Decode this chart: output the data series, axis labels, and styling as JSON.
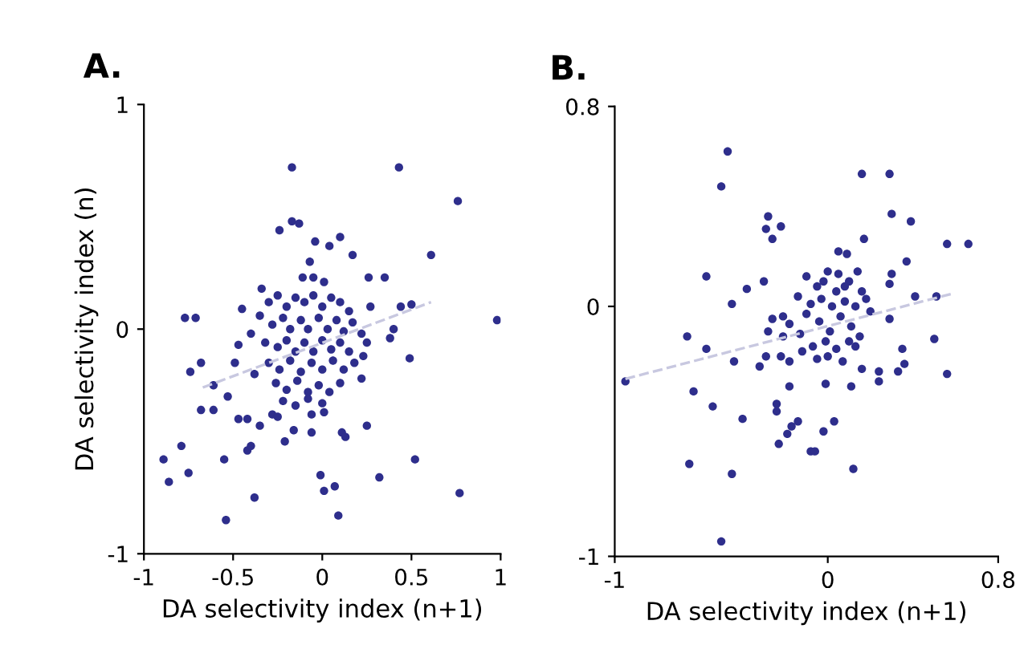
{
  "chart_data": [
    {
      "type": "scatter",
      "title": "A.",
      "xlabel": "DA selectivity index (n+1)",
      "ylabel": "DA selectivity index (n)",
      "xlim": [
        -1,
        1
      ],
      "ylim": [
        -1,
        1
      ],
      "xticks": [
        -1,
        -0.5,
        0,
        0.5,
        1
      ],
      "yticks": [
        -1,
        0,
        1
      ],
      "grid": false,
      "series": [
        {
          "marker": "circle",
          "color": "#2e2e8c",
          "x": [
            -0.17,
            0.43,
            0.76,
            0.61,
            0.98,
            -0.17,
            -0.13,
            -0.24,
            -0.04,
            0.1,
            0.04,
            0.17,
            -0.07,
            -0.11,
            -0.05,
            0.01,
            0.26,
            0.35,
            -0.34,
            -0.45,
            0.44,
            0.5,
            -0.77,
            -0.71,
            0.27,
            0.4,
            0.38,
            0.25,
            0.49,
            0.23,
            -0.47,
            -0.68,
            -0.74,
            -0.49,
            -0.61,
            -0.53,
            -0.68,
            -0.61,
            -0.47,
            -0.42,
            -0.35,
            -0.21,
            -0.16,
            -0.06,
            0.11,
            0.13,
            0.25,
            -0.42,
            -0.4,
            -0.79,
            -0.89,
            -0.86,
            -0.75,
            -0.55,
            0.52,
            0.32,
            -0.01,
            0.01,
            0.07,
            -0.38,
            0.09,
            -0.54,
            0.77,
            -0.06,
            0.01,
            -0.28,
            -0.25,
            -0.3,
            -0.25,
            -0.2,
            -0.15,
            -0.1,
            -0.05,
            0.0,
            0.05,
            0.1,
            0.15,
            -0.28,
            -0.22,
            -0.18,
            -0.12,
            -0.08,
            -0.02,
            0.03,
            0.08,
            0.12,
            0.17,
            -0.32,
            -0.25,
            -0.2,
            -0.15,
            -0.1,
            -0.05,
            0.0,
            0.05,
            0.1,
            0.15,
            -0.3,
            -0.24,
            -0.18,
            -0.12,
            -0.06,
            0.0,
            0.06,
            0.12,
            0.18,
            -0.26,
            -0.2,
            -0.14,
            -0.08,
            -0.02,
            0.04,
            0.1,
            -0.22,
            -0.15,
            -0.08,
            0.0,
            -0.4,
            -0.38,
            0.22,
            0.22,
            -0.35
          ],
          "values": [
            0.72,
            0.72,
            0.57,
            0.33,
            0.04,
            0.48,
            0.47,
            0.44,
            0.39,
            0.41,
            0.37,
            0.33,
            0.3,
            0.23,
            0.23,
            0.21,
            0.23,
            0.23,
            0.18,
            0.09,
            0.1,
            0.11,
            0.05,
            0.05,
            0.1,
            0.0,
            -0.04,
            -0.06,
            -0.13,
            -0.12,
            -0.07,
            -0.15,
            -0.19,
            -0.15,
            -0.25,
            -0.3,
            -0.36,
            -0.36,
            -0.4,
            -0.4,
            -0.43,
            -0.5,
            -0.45,
            -0.46,
            -0.46,
            -0.48,
            -0.43,
            -0.54,
            -0.52,
            -0.52,
            -0.58,
            -0.68,
            -0.64,
            -0.58,
            -0.58,
            -0.66,
            -0.65,
            -0.72,
            -0.7,
            -0.75,
            -0.83,
            -0.85,
            -0.73,
            -0.38,
            -0.37,
            -0.38,
            -0.39,
            0.12,
            0.15,
            0.1,
            0.14,
            0.12,
            0.15,
            0.1,
            0.14,
            0.12,
            0.08,
            0.02,
            0.05,
            0.0,
            0.04,
            0.0,
            0.05,
            0.0,
            0.04,
            -0.01,
            0.03,
            -0.06,
            -0.08,
            -0.05,
            -0.1,
            -0.06,
            -0.1,
            -0.05,
            -0.09,
            -0.06,
            -0.1,
            -0.15,
            -0.18,
            -0.14,
            -0.19,
            -0.15,
            -0.18,
            -0.14,
            -0.18,
            -0.15,
            -0.24,
            -0.27,
            -0.23,
            -0.28,
            -0.25,
            -0.28,
            -0.24,
            -0.32,
            -0.34,
            -0.31,
            -0.33,
            -0.02,
            -0.2,
            -0.02,
            -0.22,
            0.06
          ]
        },
        {
          "type": "line",
          "marker": "none",
          "color": "#c8c8e0",
          "line_style": "dashed",
          "x": [
            -0.67,
            0.61
          ],
          "values": [
            -0.26,
            0.12
          ]
        }
      ]
    },
    {
      "type": "scatter",
      "title": "B.",
      "xlabel": "DA selectivity index (n+1)",
      "xlim": [
        -1,
        0.8
      ],
      "ylim": [
        -1,
        0.8
      ],
      "xticks": [
        -1,
        0,
        0.8
      ],
      "yticks": [
        -1,
        0,
        0.8
      ],
      "grid": false,
      "series": [
        {
          "marker": "circle",
          "color": "#2e2e8c",
          "x": [
            -0.47,
            -0.5,
            0.16,
            0.29,
            0.3,
            0.39,
            -0.28,
            -0.29,
            -0.22,
            -0.26,
            0.17,
            0.56,
            0.66,
            0.37,
            0.05,
            0.09,
            -0.57,
            -0.3,
            -0.38,
            -0.45,
            0.41,
            0.51,
            0.3,
            0.29,
            0.29,
            -0.66,
            -0.57,
            0.5,
            0.35,
            0.36,
            0.33,
            0.56,
            -0.95,
            -0.44,
            -0.63,
            -0.54,
            -0.4,
            -0.24,
            -0.24,
            -0.14,
            -0.17,
            -0.19,
            -0.23,
            -0.08,
            -0.06,
            -0.02,
            0.03,
            -0.65,
            -0.45,
            0.12,
            -0.5,
            0.24,
            0.24,
            0.16,
            0.11,
            -0.01,
            -0.18,
            -0.32,
            -0.1,
            -0.05,
            0.0,
            -0.02,
            0.05,
            0.1,
            0.14,
            0.08,
            0.16,
            0.04,
            -0.14,
            -0.08,
            -0.03,
            0.02,
            0.08,
            0.13,
            0.18,
            0.2,
            -0.26,
            -0.21,
            -0.18,
            -0.1,
            -0.04,
            0.01,
            0.06,
            0.11,
            0.15,
            -0.28,
            -0.21,
            -0.13,
            -0.07,
            -0.01,
            0.04,
            0.1,
            0.13,
            -0.22,
            -0.18,
            -0.12,
            -0.05,
            0.0,
            0.07,
            -0.29
          ],
          "values": [
            0.62,
            0.48,
            0.53,
            0.53,
            0.37,
            0.34,
            0.36,
            0.31,
            0.32,
            0.27,
            0.27,
            0.25,
            0.25,
            0.18,
            0.22,
            0.21,
            0.12,
            0.1,
            0.07,
            0.01,
            0.04,
            0.04,
            0.13,
            0.09,
            -0.05,
            -0.12,
            -0.17,
            -0.13,
            -0.17,
            -0.23,
            -0.26,
            -0.27,
            -0.3,
            -0.22,
            -0.34,
            -0.4,
            -0.45,
            -0.39,
            -0.42,
            -0.46,
            -0.48,
            -0.51,
            -0.55,
            -0.58,
            -0.58,
            -0.5,
            -0.46,
            -0.63,
            -0.67,
            -0.65,
            -0.94,
            -0.26,
            -0.3,
            -0.25,
            -0.32,
            -0.31,
            -0.32,
            -0.24,
            0.12,
            0.08,
            0.14,
            0.1,
            0.13,
            0.1,
            0.14,
            0.08,
            0.06,
            0.06,
            0.04,
            0.01,
            0.03,
            0.0,
            0.02,
            0.0,
            0.03,
            -0.02,
            -0.05,
            -0.04,
            -0.07,
            -0.03,
            -0.06,
            -0.1,
            -0.04,
            -0.08,
            -0.12,
            -0.1,
            -0.12,
            -0.11,
            -0.16,
            -0.14,
            -0.17,
            -0.14,
            -0.16,
            -0.2,
            -0.22,
            -0.18,
            -0.21,
            -0.2,
            -0.22,
            -0.2
          ]
        },
        {
          "type": "line",
          "marker": "none",
          "color": "#c8c8e0",
          "line_style": "dashed",
          "x": [
            -0.95,
            0.58
          ],
          "values": [
            -0.29,
            0.05
          ]
        }
      ]
    }
  ]
}
